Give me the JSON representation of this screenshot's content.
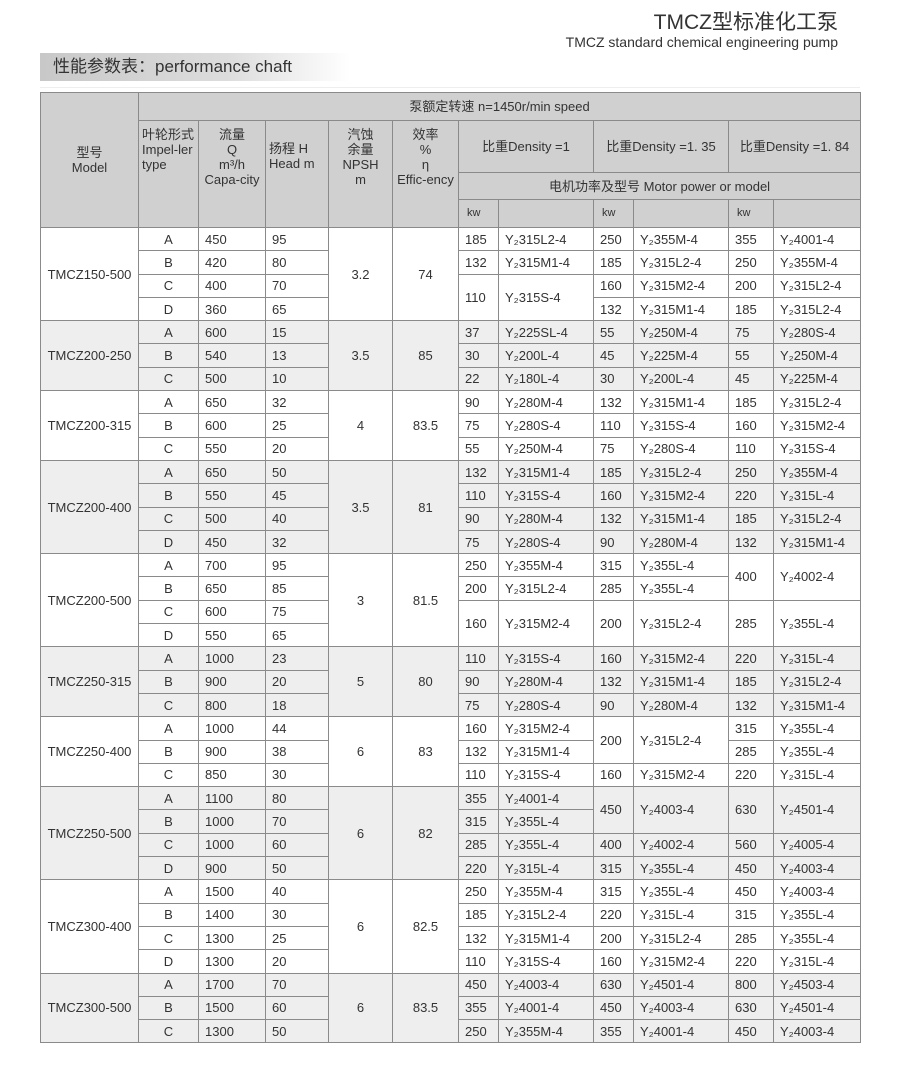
{
  "header": {
    "title": "TMCZ型标准化工泵",
    "subtitle": "TMCZ standard chemical engineering pump",
    "section_label": "性能参数表：performance chaft"
  },
  "table_header": {
    "model": "型号\nModel",
    "speed": "泵额定转速 n=1450r/min speed",
    "impeller": "叶轮形式\nImpel-ler\ntype",
    "flow": "流量\nQ\nm³/h\nCapa-city",
    "head": "扬程 H\nHead m",
    "npsh": "汽蚀\n余量\nNPSH\nm",
    "efficiency": "效率\n%\nη\nEffic-ency",
    "density_1": "比重Density =1",
    "density_2": "比重Density =1. 35",
    "density_3": "比重Density =1. 84",
    "motor": "电机功率及型号 Motor power or model",
    "kw": "kw"
  },
  "groups": [
    {
      "model": "TMCZ150-500",
      "npsh": "3.2",
      "eff": "74",
      "rows": [
        [
          "A",
          "450",
          "95",
          [
            "185",
            "Y₂315L2-4"
          ],
          [
            "250",
            "Y₂355M-4"
          ],
          [
            "355",
            "Y₂4001-4"
          ]
        ],
        [
          "B",
          "420",
          "80",
          [
            "132",
            "Y₂315M1-4"
          ],
          [
            "185",
            "Y₂315L2-4"
          ],
          [
            "250",
            "Y₂355M-4"
          ]
        ],
        [
          "C",
          "400",
          "70",
          [
            "110",
            "Y₂315S-4",
            2
          ],
          [
            "160",
            "Y₂315M2-4"
          ],
          [
            "200",
            "Y₂315L2-4"
          ]
        ],
        [
          "D",
          "360",
          "65",
          null,
          [
            "132",
            "Y₂315M1-4"
          ],
          [
            "185",
            "Y₂315L2-4"
          ]
        ]
      ]
    },
    {
      "model": "TMCZ200-250",
      "npsh": "3.5",
      "eff": "85",
      "rows": [
        [
          "A",
          "600",
          "15",
          [
            "37",
            "Y₂225SL-4"
          ],
          [
            "55",
            "Y₂250M-4"
          ],
          [
            "75",
            "Y₂280S-4"
          ]
        ],
        [
          "B",
          "540",
          "13",
          [
            "30",
            "Y₂200L-4"
          ],
          [
            "45",
            "Y₂225M-4"
          ],
          [
            "55",
            "Y₂250M-4"
          ]
        ],
        [
          "C",
          "500",
          "10",
          [
            "22",
            "Y₂180L-4"
          ],
          [
            "30",
            "Y₂200L-4"
          ],
          [
            "45",
            "Y₂225M-4"
          ]
        ]
      ]
    },
    {
      "model": "TMCZ200-315",
      "npsh": "4",
      "eff": "83.5",
      "rows": [
        [
          "A",
          "650",
          "32",
          [
            "90",
            "Y₂280M-4"
          ],
          [
            "132",
            "Y₂315M1-4"
          ],
          [
            "185",
            "Y₂315L2-4"
          ]
        ],
        [
          "B",
          "600",
          "25",
          [
            "75",
            "Y₂280S-4"
          ],
          [
            "110",
            "Y₂315S-4"
          ],
          [
            "160",
            "Y₂315M2-4"
          ]
        ],
        [
          "C",
          "550",
          "20",
          [
            "55",
            "Y₂250M-4"
          ],
          [
            "75",
            "Y₂280S-4"
          ],
          [
            "110",
            "Y₂315S-4"
          ]
        ]
      ]
    },
    {
      "model": "TMCZ200-400",
      "npsh": "3.5",
      "eff": "81",
      "rows": [
        [
          "A",
          "650",
          "50",
          [
            "132",
            "Y₂315M1-4"
          ],
          [
            "185",
            "Y₂315L2-4"
          ],
          [
            "250",
            "Y₂355M-4"
          ]
        ],
        [
          "B",
          "550",
          "45",
          [
            "110",
            "Y₂315S-4"
          ],
          [
            "160",
            "Y₂315M2-4"
          ],
          [
            "220",
            "Y₂315L-4"
          ]
        ],
        [
          "C",
          "500",
          "40",
          [
            "90",
            "Y₂280M-4"
          ],
          [
            "132",
            "Y₂315M1-4"
          ],
          [
            "185",
            "Y₂315L2-4"
          ]
        ],
        [
          "D",
          "450",
          "32",
          [
            "75",
            "Y₂280S-4"
          ],
          [
            "90",
            "Y₂280M-4"
          ],
          [
            "132",
            "Y₂315M1-4"
          ]
        ]
      ]
    },
    {
      "model": "TMCZ200-500",
      "npsh": "3",
      "eff": "81.5",
      "rows": [
        [
          "A",
          "700",
          "95",
          [
            "250",
            "Y₂355M-4"
          ],
          [
            "315",
            "Y₂355L-4"
          ],
          [
            "400",
            "Y₂4002-4",
            2
          ]
        ],
        [
          "B",
          "650",
          "85",
          [
            "200",
            "Y₂315L2-4"
          ],
          [
            "285",
            "Y₂355L-4"
          ],
          null
        ],
        [
          "C",
          "600",
          "75",
          [
            "160",
            "Y₂315M2-4",
            2
          ],
          [
            "200",
            "Y₂315L2-4",
            2
          ],
          [
            "285",
            "Y₂355L-4",
            2
          ]
        ],
        [
          "D",
          "550",
          "65",
          null,
          null,
          null
        ]
      ]
    },
    {
      "model": "TMCZ250-315",
      "npsh": "5",
      "eff": "80",
      "rows": [
        [
          "A",
          "1000",
          "23",
          [
            "110",
            "Y₂315S-4"
          ],
          [
            "160",
            "Y₂315M2-4"
          ],
          [
            "220",
            "Y₂315L-4"
          ]
        ],
        [
          "B",
          "900",
          "20",
          [
            "90",
            "Y₂280M-4"
          ],
          [
            "132",
            "Y₂315M1-4"
          ],
          [
            "185",
            "Y₂315L2-4"
          ]
        ],
        [
          "C",
          "800",
          "18",
          [
            "75",
            "Y₂280S-4"
          ],
          [
            "90",
            "Y₂280M-4"
          ],
          [
            "132",
            "Y₂315M1-4"
          ]
        ]
      ]
    },
    {
      "model": "TMCZ250-400",
      "npsh": "6",
      "eff": "83",
      "rows": [
        [
          "A",
          "1000",
          "44",
          [
            "160",
            "Y₂315M2-4"
          ],
          [
            "200",
            "Y₂315L2-4",
            2
          ],
          [
            "315",
            "Y₂355L-4"
          ]
        ],
        [
          "B",
          "900",
          "38",
          [
            "132",
            "Y₂315M1-4"
          ],
          null,
          [
            "285",
            "Y₂355L-4"
          ]
        ],
        [
          "C",
          "850",
          "30",
          [
            "110",
            "Y₂315S-4"
          ],
          [
            "160",
            "Y₂315M2-4"
          ],
          [
            "220",
            "Y₂315L-4"
          ]
        ]
      ]
    },
    {
      "model": "TMCZ250-500",
      "npsh": "6",
      "eff": "82",
      "rows": [
        [
          "A",
          "1100",
          "80",
          [
            "355",
            "Y₂4001-4"
          ],
          [
            "450",
            "Y₂4003-4",
            2
          ],
          [
            "630",
            "Y₂4501-4",
            2
          ]
        ],
        [
          "B",
          "1000",
          "70",
          [
            "315",
            "Y₂355L-4"
          ],
          null,
          null
        ],
        [
          "C",
          "1000",
          "60",
          [
            "285",
            "Y₂355L-4"
          ],
          [
            "400",
            "Y₂4002-4"
          ],
          [
            "560",
            "Y₂4005-4"
          ]
        ],
        [
          "D",
          "900",
          "50",
          [
            "220",
            "Y₂315L-4"
          ],
          [
            "315",
            "Y₂355L-4"
          ],
          [
            "450",
            "Y₂4003-4"
          ]
        ]
      ]
    },
    {
      "model": "TMCZ300-400",
      "npsh": "6",
      "eff": "82.5",
      "rows": [
        [
          "A",
          "1500",
          "40",
          [
            "250",
            "Y₂355M-4"
          ],
          [
            "315",
            "Y₂355L-4"
          ],
          [
            "450",
            "Y₂4003-4"
          ]
        ],
        [
          "B",
          "1400",
          "30",
          [
            "185",
            "Y₂315L2-4"
          ],
          [
            "220",
            "Y₂315L-4"
          ],
          [
            "315",
            "Y₂355L-4"
          ]
        ],
        [
          "C",
          "1300",
          "25",
          [
            "132",
            "Y₂315M1-4"
          ],
          [
            "200",
            "Y₂315L2-4"
          ],
          [
            "285",
            "Y₂355L-4"
          ]
        ],
        [
          "D",
          "1300",
          "20",
          [
            "110",
            "Y₂315S-4"
          ],
          [
            "160",
            "Y₂315M2-4"
          ],
          [
            "220",
            "Y₂315L-4"
          ]
        ]
      ]
    },
    {
      "model": "TMCZ300-500",
      "npsh": "6",
      "eff": "83.5",
      "rows": [
        [
          "A",
          "1700",
          "70",
          [
            "450",
            "Y₂4003-4"
          ],
          [
            "630",
            "Y₂4501-4"
          ],
          [
            "800",
            "Y₂4503-4"
          ]
        ],
        [
          "B",
          "1500",
          "60",
          [
            "355",
            "Y₂4001-4"
          ],
          [
            "450",
            "Y₂4003-4"
          ],
          [
            "630",
            "Y₂4501-4"
          ]
        ],
        [
          "C",
          "1300",
          "50",
          [
            "250",
            "Y₂355M-4"
          ],
          [
            "355",
            "Y₂4001-4"
          ],
          [
            "450",
            "Y₂4003-4"
          ]
        ]
      ]
    }
  ],
  "colors": {
    "header_bg": "#d0d0d0",
    "alt_group_bg": "#eeeeee",
    "border": "#8a8a8a"
  }
}
